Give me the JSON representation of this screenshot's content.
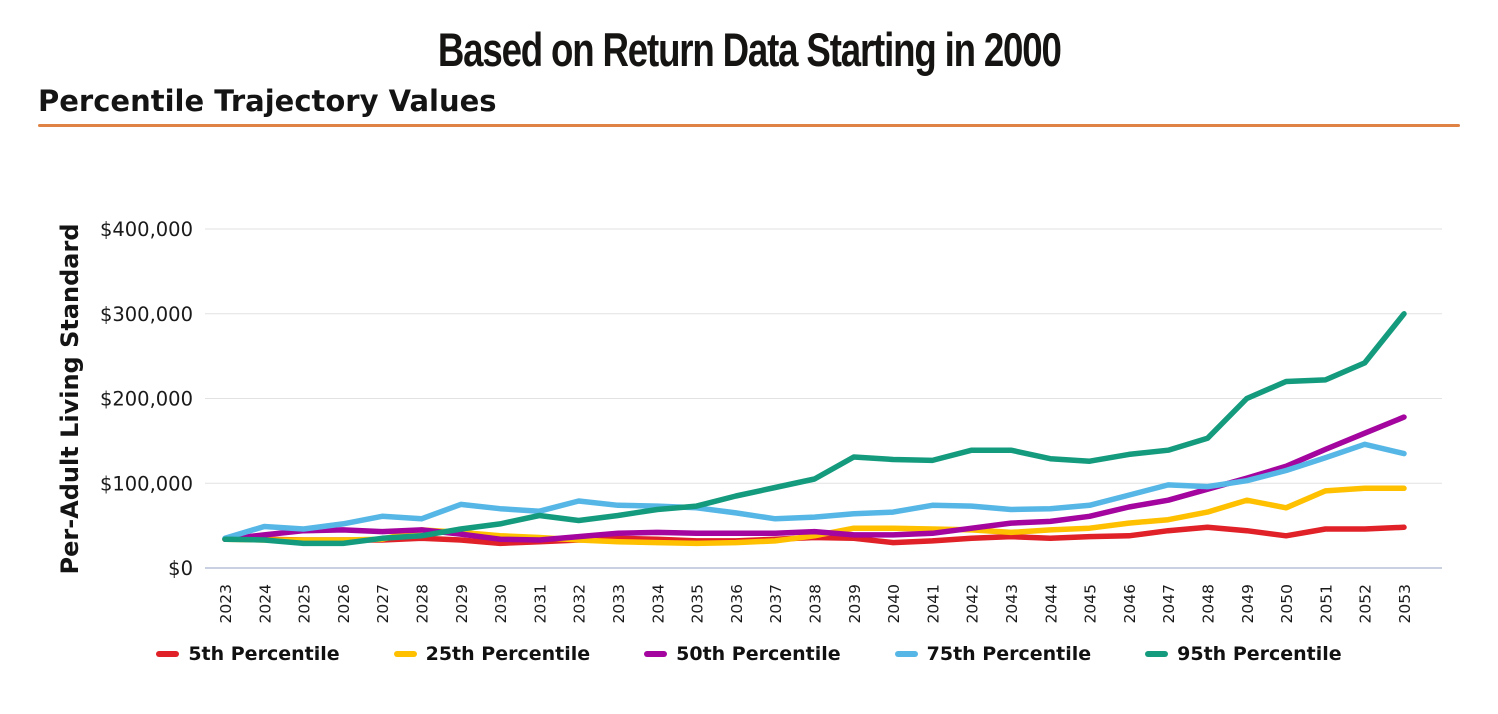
{
  "page": {
    "title": "Based on Return Data Starting in 2000",
    "subtitle": "Percentile Trajectory Values",
    "accent_rule_color": "#DE8344"
  },
  "chart_data": {
    "type": "line",
    "title": "Based on Return Data Starting in 2000",
    "subtitle": "Percentile Trajectory Values",
    "xlabel": "",
    "ylabel": "Per-Adult Living Standard",
    "ylim": [
      0,
      400000
    ],
    "grid": "horizontal",
    "legend_position": "bottom",
    "grid_color": "#e2e2e2",
    "zero_axis_color": "#b7c0d8",
    "tick_label_color": "#1a1a1a",
    "x": [
      2023,
      2024,
      2025,
      2026,
      2027,
      2028,
      2029,
      2030,
      2031,
      2032,
      2033,
      2034,
      2035,
      2036,
      2037,
      2038,
      2039,
      2040,
      2041,
      2042,
      2043,
      2044,
      2045,
      2046,
      2047,
      2048,
      2049,
      2050,
      2051,
      2052,
      2053
    ],
    "y_ticks": [
      {
        "value": 0,
        "label": "$0"
      },
      {
        "value": 100000,
        "label": "$100,000"
      },
      {
        "value": 200000,
        "label": "$200,000"
      },
      {
        "value": 300000,
        "label": "$300,000"
      },
      {
        "value": 400000,
        "label": "$400,000"
      }
    ],
    "series": [
      {
        "name": "5th Percentile",
        "color": "#E02127",
        "values": [
          34000,
          34000,
          33000,
          33000,
          33000,
          35000,
          33000,
          29000,
          31000,
          33000,
          35000,
          34000,
          32000,
          32000,
          34000,
          36000,
          35000,
          30000,
          32000,
          35000,
          37000,
          35000,
          37000,
          38000,
          44000,
          48000,
          44000,
          38000,
          46000,
          46000,
          48000
        ]
      },
      {
        "name": "25th Percentile",
        "color": "#FFC000",
        "values": [
          34000,
          33000,
          33000,
          33000,
          34000,
          45000,
          42000,
          38000,
          36000,
          33000,
          31000,
          30000,
          29000,
          30000,
          32000,
          38000,
          47000,
          47000,
          46000,
          45000,
          42000,
          45000,
          47000,
          53000,
          57000,
          66000,
          80000,
          71000,
          91000,
          94000,
          94000
        ]
      },
      {
        "name": "50th Percentile",
        "color": "#A3059E",
        "values": [
          34000,
          39000,
          44000,
          45000,
          43000,
          45000,
          40000,
          34000,
          33000,
          37000,
          41000,
          42000,
          41000,
          41000,
          41000,
          43000,
          39000,
          39000,
          41000,
          47000,
          53000,
          55000,
          61000,
          72000,
          80000,
          93000,
          106000,
          120000,
          140000,
          159000,
          178000
        ]
      },
      {
        "name": "75th Percentile",
        "color": "#56B7E6",
        "values": [
          35000,
          49000,
          46000,
          52000,
          61000,
          58000,
          75000,
          70000,
          67000,
          79000,
          74000,
          73000,
          71000,
          65000,
          58000,
          60000,
          64000,
          66000,
          74000,
          73000,
          69000,
          70000,
          74000,
          86000,
          98000,
          96000,
          103000,
          115000,
          130000,
          146000,
          135000
        ]
      },
      {
        "name": "95th Percentile",
        "color": "#149B7E",
        "values": [
          34000,
          33000,
          29000,
          29000,
          35000,
          38000,
          46000,
          52000,
          62000,
          56000,
          62000,
          69000,
          73000,
          85000,
          95000,
          105000,
          131000,
          128000,
          127000,
          139000,
          139000,
          129000,
          126000,
          134000,
          139000,
          153000,
          200000,
          220000,
          222000,
          242000,
          300000
        ]
      }
    ]
  }
}
